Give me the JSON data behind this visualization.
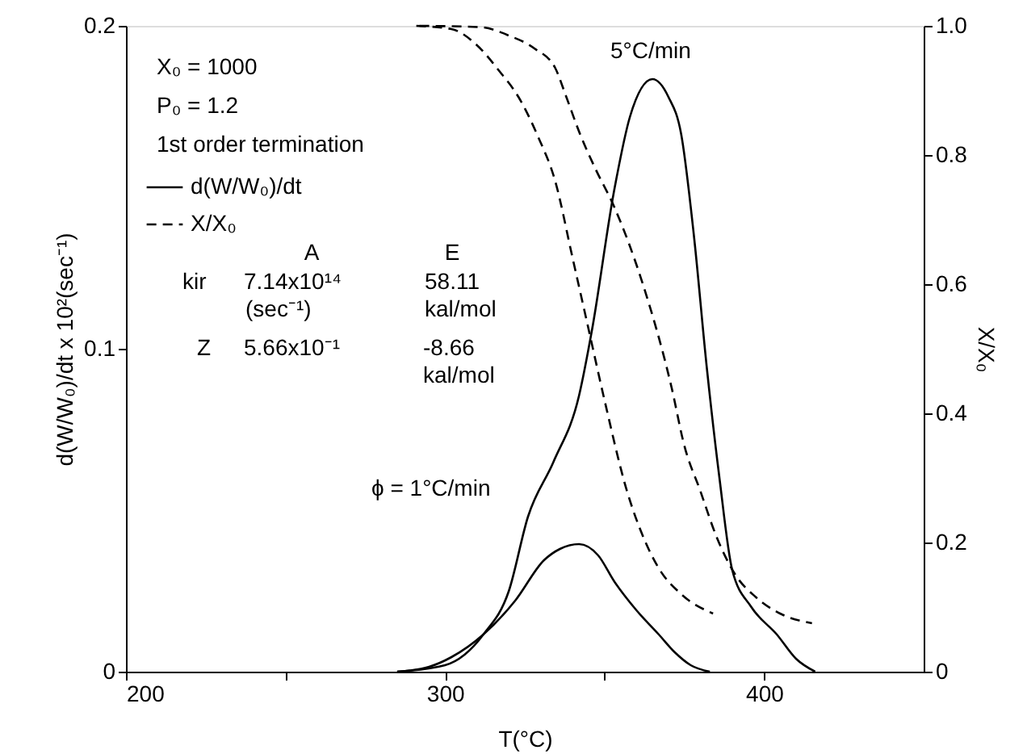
{
  "chart_data": {
    "type": "line",
    "xlabel": "T(°C)",
    "ylabel": "d(W/W₀)/dt x 10²(sec⁻¹)",
    "y2label": "X/X₀",
    "xlim": [
      200,
      450
    ],
    "xticks": [
      200,
      {
        "value": 250,
        "label": null
      },
      300,
      {
        "value": 350,
        "label": null
      },
      400
    ],
    "ylim": [
      0,
      0.2
    ],
    "yticks": [
      0,
      0.1,
      0.2
    ],
    "y2lim": [
      0,
      1.0
    ],
    "y2ticks": [
      0,
      0.2,
      0.4,
      0.6,
      0.8,
      {
        "value": 1,
        "label": "1.0"
      }
    ],
    "grid": false,
    "legend": "top left",
    "marker": "none",
    "series": [
      {
        "name": "d(W/W₀)/dt",
        "color": "#000000",
        "line_style": "solid",
        "axis": "y",
        "x": [
          285,
          295,
          302,
          312,
          322,
          331,
          336,
          342,
          348,
          353,
          360,
          367,
          372,
          377,
          383
        ],
        "values": [
          0,
          0.0015,
          0.0045,
          0.0115,
          0.022,
          0.0345,
          0.038,
          0.0395,
          0.036,
          0.028,
          0.019,
          0.0115,
          0.006,
          0.002,
          0
        ]
      },
      {
        "color": "#000000",
        "line_style": "solid",
        "axis": "y",
        "x": [
          285,
          300,
          312,
          320,
          326,
          334,
          342,
          346,
          353,
          358,
          365,
          370,
          374,
          378,
          382,
          386,
          390,
          396,
          404,
          410,
          416
        ],
        "values": [
          0,
          0.002,
          0.0115,
          0.025,
          0.048,
          0.065,
          0.0855,
          0.1055,
          0.149,
          0.172,
          0.1835,
          0.178,
          0.1665,
          0.135,
          0.0945,
          0.06,
          0.0315,
          0.02,
          0.0115,
          0.004,
          0
        ]
      },
      {
        "name": "X/X₀",
        "color": "#000000",
        "line_style": "dashed",
        "axis": "y2",
        "x": [
          291,
          302,
          310,
          317,
          323,
          329,
          334.5,
          340,
          345,
          350,
          357,
          362,
          367,
          374,
          384
        ],
        "values": [
          1.0,
          0.995,
          0.97,
          0.93,
          0.89,
          0.83,
          0.76,
          0.64,
          0.53,
          0.42,
          0.28,
          0.21,
          0.16,
          0.12,
          0.09
        ]
      },
      {
        "color": "#000000",
        "line_style": "dashed",
        "axis": "y2",
        "x": [
          292,
          311,
          320,
          328,
          334.5,
          338,
          342.5,
          347,
          353,
          362,
          371,
          375,
          380,
          385,
          391,
          397.5,
          405,
          415
        ],
        "values": [
          1.0,
          0.998,
          0.985,
          0.965,
          0.935,
          0.89,
          0.83,
          0.78,
          0.72,
          0.6,
          0.44,
          0.35,
          0.28,
          0.21,
          0.15,
          0.115,
          0.09,
          0.075
        ]
      }
    ],
    "annotations": [
      "X₀ = 1000",
      "P₀ = 1.2",
      "1st order termination",
      "A",
      "E",
      "kir",
      "7.14x10¹⁴",
      "(sec⁻¹)",
      "58.11",
      "kal/mol",
      "Z",
      "5.66x10⁻¹",
      "-8.66",
      "kal/mol",
      "5°C/min",
      "ϕ = 1°C/min"
    ]
  }
}
